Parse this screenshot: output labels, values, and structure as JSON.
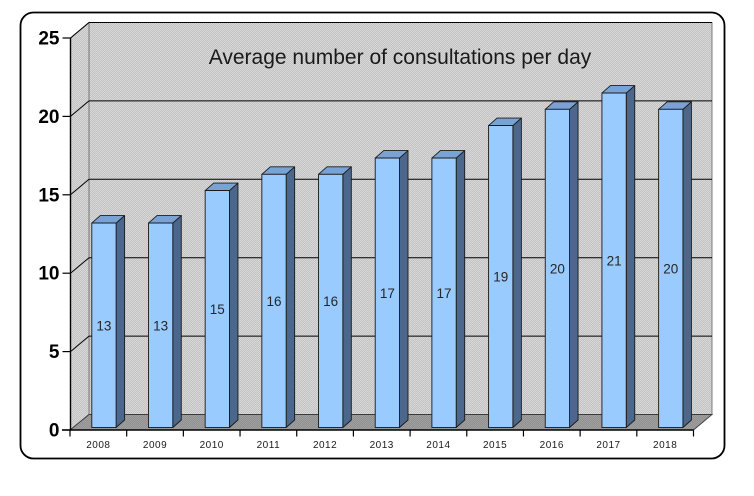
{
  "window": {
    "background": "#ffffff",
    "border_color": "#000000"
  },
  "chart_data": {
    "type": "bar",
    "view": "3d-column",
    "title": "Average number of consultations per day",
    "categories": [
      "2008",
      "2009",
      "2010",
      "2011",
      "2012",
      "2013",
      "2014",
      "2015",
      "2016",
      "2017",
      "2018"
    ],
    "values": [
      13,
      13,
      15,
      16,
      16,
      17,
      17,
      19,
      20,
      21,
      20
    ],
    "data_labels": [
      13,
      13,
      15,
      16,
      16,
      17,
      17,
      19,
      20,
      21,
      20
    ],
    "xlabel": "",
    "ylabel": "",
    "ylim": [
      0,
      25
    ],
    "yticks": [
      0,
      5,
      10,
      15,
      20,
      25
    ],
    "grid": true,
    "legend": false,
    "style": {
      "bar_front": "#99CBFF",
      "bar_top": "#79A3D4",
      "bar_side": "#4B688C",
      "bar_outline": "#1a1a1a",
      "wall": "#C2C2C2",
      "wall_dot": "#D8D8D8",
      "wall_edge": "#6e6e6e",
      "floor": "#909090",
      "floor_dot": "#A0A0A0",
      "floor_edge": "#3c3c3c",
      "gridline": "#000000",
      "axis_line": "#000000",
      "title_color": "#1a1a1a",
      "value_label_color": "#262626"
    }
  }
}
